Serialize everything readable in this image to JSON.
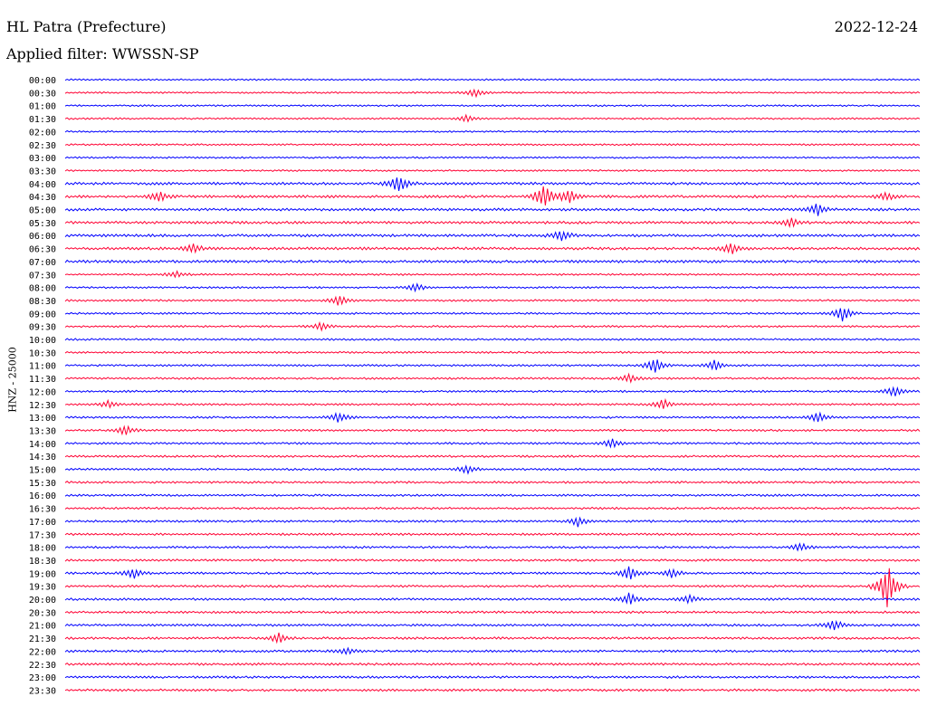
{
  "header": {
    "station": "HL Patra (Prefecture)",
    "date": "2022-12-24",
    "filter": "Applied filter: WWSSN-SP",
    "channel_label": "HNZ - 25000"
  },
  "colors": {
    "even": "#0000ff",
    "odd": "#ff0033"
  },
  "chart_data": {
    "type": "line",
    "title": "HL Patra (Prefecture)",
    "subtitle": "Applied filter: WWSSN-SP",
    "ylabel": "HNZ - 25000",
    "xlabel": "",
    "y_tick_labels": [
      "00:00",
      "00:30",
      "01:00",
      "01:30",
      "02:00",
      "02:30",
      "03:00",
      "03:30",
      "04:00",
      "04:30",
      "05:00",
      "05:30",
      "06:00",
      "06:30",
      "07:00",
      "07:30",
      "08:00",
      "08:30",
      "09:00",
      "09:30",
      "10:00",
      "10:30",
      "11:00",
      "11:30",
      "12:00",
      "12:30",
      "13:00",
      "13:30",
      "14:00",
      "14:30",
      "15:00",
      "15:30",
      "16:00",
      "16:30",
      "17:00",
      "17:30",
      "18:00",
      "18:30",
      "19:00",
      "19:30",
      "20:00",
      "20:30",
      "21:00",
      "21:30",
      "22:00",
      "22:30",
      "23:00",
      "23:30"
    ],
    "series_colors_alternate": [
      "blue",
      "red"
    ],
    "events": [
      {
        "trace": "00:30",
        "t": 0.48,
        "amp": 5
      },
      {
        "trace": "01:30",
        "t": 0.47,
        "amp": 4
      },
      {
        "trace": "04:00",
        "t": 0.39,
        "amp": 11
      },
      {
        "trace": "04:30",
        "t": 0.56,
        "amp": 16
      },
      {
        "trace": "04:30",
        "t": 0.59,
        "amp": 8
      },
      {
        "trace": "04:30",
        "t": 0.11,
        "amp": 6
      },
      {
        "trace": "04:30",
        "t": 0.96,
        "amp": 5
      },
      {
        "trace": "05:00",
        "t": 0.88,
        "amp": 7
      },
      {
        "trace": "05:30",
        "t": 0.85,
        "amp": 5
      },
      {
        "trace": "06:00",
        "t": 0.58,
        "amp": 7
      },
      {
        "trace": "06:30",
        "t": 0.15,
        "amp": 5
      },
      {
        "trace": "06:30",
        "t": 0.78,
        "amp": 6
      },
      {
        "trace": "07:30",
        "t": 0.13,
        "amp": 4
      },
      {
        "trace": "08:00",
        "t": 0.41,
        "amp": 5
      },
      {
        "trace": "08:30",
        "t": 0.32,
        "amp": 6
      },
      {
        "trace": "09:00",
        "t": 0.91,
        "amp": 9
      },
      {
        "trace": "09:30",
        "t": 0.3,
        "amp": 5
      },
      {
        "trace": "11:00",
        "t": 0.69,
        "amp": 10
      },
      {
        "trace": "11:00",
        "t": 0.76,
        "amp": 6
      },
      {
        "trace": "11:30",
        "t": 0.66,
        "amp": 5
      },
      {
        "trace": "12:00",
        "t": 0.97,
        "amp": 6
      },
      {
        "trace": "12:30",
        "t": 0.05,
        "amp": 4
      },
      {
        "trace": "12:30",
        "t": 0.7,
        "amp": 6
      },
      {
        "trace": "13:00",
        "t": 0.32,
        "amp": 6
      },
      {
        "trace": "13:00",
        "t": 0.88,
        "amp": 6
      },
      {
        "trace": "13:30",
        "t": 0.07,
        "amp": 6
      },
      {
        "trace": "14:00",
        "t": 0.64,
        "amp": 5
      },
      {
        "trace": "15:00",
        "t": 0.47,
        "amp": 5
      },
      {
        "trace": "17:00",
        "t": 0.6,
        "amp": 6
      },
      {
        "trace": "18:00",
        "t": 0.86,
        "amp": 5
      },
      {
        "trace": "19:00",
        "t": 0.08,
        "amp": 6
      },
      {
        "trace": "19:00",
        "t": 0.66,
        "amp": 8
      },
      {
        "trace": "19:00",
        "t": 0.71,
        "amp": 5
      },
      {
        "trace": "19:30",
        "t": 0.962,
        "amp": 28
      },
      {
        "trace": "20:00",
        "t": 0.66,
        "amp": 7
      },
      {
        "trace": "20:00",
        "t": 0.73,
        "amp": 5
      },
      {
        "trace": "21:00",
        "t": 0.9,
        "amp": 7
      },
      {
        "trace": "21:30",
        "t": 0.25,
        "amp": 6
      },
      {
        "trace": "22:00",
        "t": 0.33,
        "amp": 4
      }
    ]
  }
}
